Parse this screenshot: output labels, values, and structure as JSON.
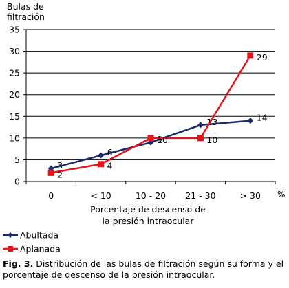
{
  "chart_data": {
    "type": "line",
    "ylabel": "Bulas de filtración",
    "xlabel": "Porcentaje de descenso de la presión intraocular",
    "x_unit": "%",
    "categories": [
      "0",
      "< 10",
      "10 - 20",
      "21 - 30",
      "> 30"
    ],
    "ylim": [
      0,
      35
    ],
    "yticks": [
      0,
      5,
      10,
      15,
      20,
      25,
      30,
      35
    ],
    "grid": true,
    "legend_position": "bottom-left",
    "series": [
      {
        "name": "Abultada",
        "values": [
          3,
          6,
          9,
          13,
          14
        ],
        "color": "#1b2a6b",
        "marker": "diamond"
      },
      {
        "name": "Aplanada",
        "values": [
          2,
          4,
          10,
          10,
          29
        ],
        "color": "#e3141b",
        "marker": "square"
      }
    ]
  },
  "caption": {
    "label": "Fig. 3.",
    "text": " Distribución de las bulas de filtración según su forma y el porcentaje de descenso de la presión intraocular."
  }
}
